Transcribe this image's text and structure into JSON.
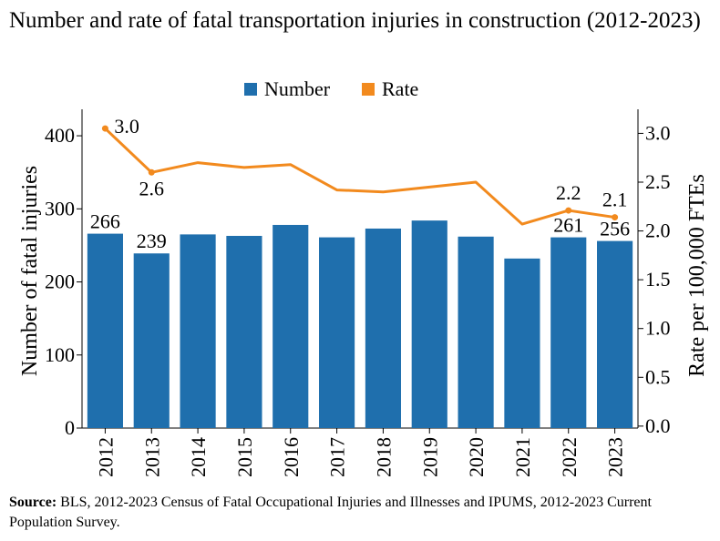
{
  "chart_data": {
    "type": "bar+line",
    "title": "Number and rate of fatal transportation injuries in construction (2012-2023)",
    "categories": [
      "2012",
      "2013",
      "2014",
      "2015",
      "2016",
      "2017",
      "2018",
      "2019",
      "2020",
      "2021",
      "2022",
      "2023"
    ],
    "series": [
      {
        "name": "Number",
        "type": "bar",
        "axis": "left",
        "color": "#1f6fad",
        "values": [
          266,
          239,
          265,
          263,
          278,
          261,
          273,
          284,
          262,
          232,
          261,
          256
        ]
      },
      {
        "name": "Rate",
        "type": "line",
        "axis": "right",
        "color": "#f28a1e",
        "values": [
          3.05,
          2.6,
          2.7,
          2.65,
          2.68,
          2.42,
          2.4,
          2.45,
          2.5,
          2.07,
          2.21,
          2.14
        ]
      }
    ],
    "bar_labels": [
      {
        "index": 0,
        "text": "266"
      },
      {
        "index": 1,
        "text": "239"
      },
      {
        "index": 10,
        "text": "261"
      },
      {
        "index": 11,
        "text": "256"
      }
    ],
    "rate_labels": [
      {
        "index": 0,
        "text": "3.0"
      },
      {
        "index": 1,
        "text": "2.6"
      },
      {
        "index": 10,
        "text": "2.2"
      },
      {
        "index": 11,
        "text": "2.1"
      }
    ],
    "ylabel": "Number of fatal injuries",
    "y2label": "Rate per 100,000 FTEs",
    "ylim": [
      0,
      430
    ],
    "y2lim": [
      -0.02,
      3.2
    ],
    "yticks": [
      0,
      100,
      200,
      300,
      400
    ],
    "y2ticks": [
      "0.0",
      "0.5",
      "1.0",
      "1.5",
      "2.0",
      "2.5",
      "3.0"
    ],
    "legend": [
      {
        "label": "Number",
        "color": "#1f6fad"
      },
      {
        "label": "Rate",
        "color": "#f28a1e"
      }
    ],
    "legend_position": "top-center"
  },
  "source": {
    "label": "Source:",
    "text": " BLS, 2012-2023 Census of Fatal Occupational Injuries and Illnesses and IPUMS, 2012-2023 Current Population Survey."
  }
}
